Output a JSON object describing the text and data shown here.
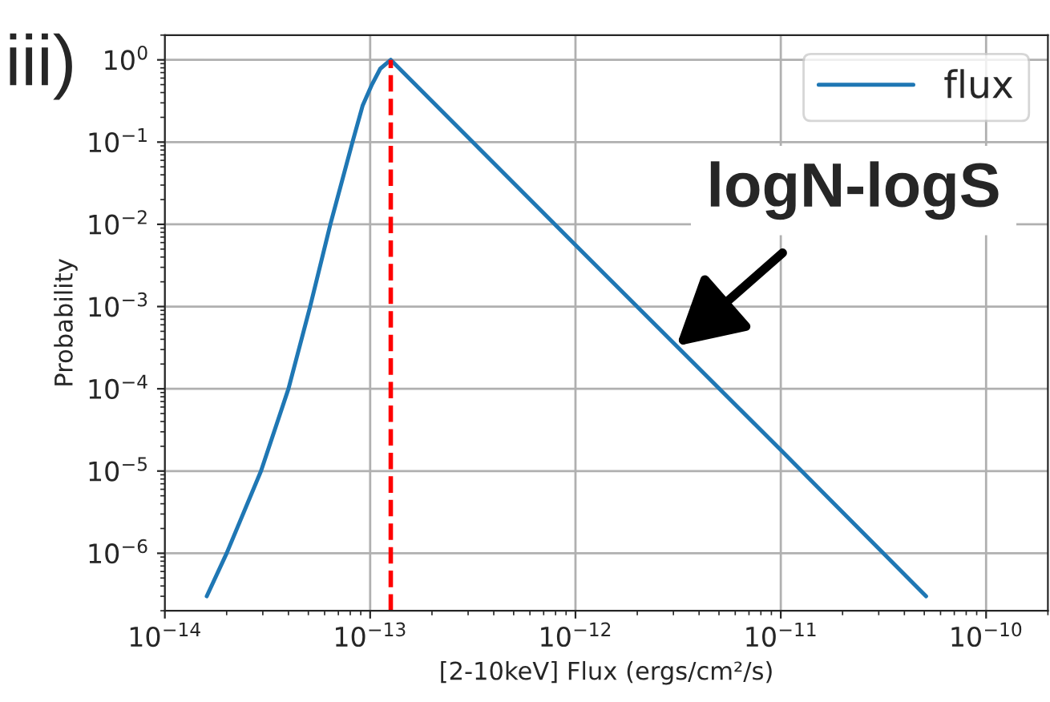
{
  "chart_data": {
    "type": "line",
    "xlabel": "[2-10keV] Flux (ergs/cm²/s)",
    "ylabel": "Probability",
    "series": [
      {
        "name": "flux",
        "color": "#1f77b4",
        "x": [
          1.6e-14,
          2e-14,
          2.94e-14,
          4e-14,
          5.1e-14,
          6.4e-14,
          8.2e-14,
          9.2e-14,
          1.02e-13,
          1.12e-13,
          1.26e-13,
          1e-12,
          1e-11,
          5.1e-11
        ],
        "values": [
          3e-07,
          1e-06,
          1e-05,
          0.0001,
          0.001,
          0.01,
          0.1,
          0.28,
          0.5,
          0.78,
          1,
          0.0056,
          1.8e-05,
          3e-07
        ]
      }
    ],
    "log": "xy",
    "grid": true,
    "legend": "top right",
    "line_style": "solid",
    "marker": "none",
    "xlim": [
      1e-14,
      2e-10
    ],
    "xticks": [
      {
        "value": 1e-14,
        "label": "10$^{−14}$"
      },
      {
        "value": 1e-13,
        "label": "10$^{−13}$"
      },
      {
        "value": 1e-12,
        "label": "10$^{−12}$"
      },
      {
        "value": 1e-11,
        "label": "10$^{−11}$"
      },
      {
        "value": 1e-10,
        "label": "10$^{−10}$"
      }
    ],
    "ylim": [
      2e-07,
      2
    ],
    "yticks": [
      {
        "value": 1e-06,
        "label": "10$^{−6}$"
      },
      {
        "value": 1e-05,
        "label": "10$^{−5}$"
      },
      {
        "value": 0.0001,
        "label": "10$^{−4}$"
      },
      {
        "value": 0.001,
        "label": "10$^{−3}$"
      },
      {
        "value": 0.01,
        "label": "10$^{−2}$"
      },
      {
        "value": 0.1,
        "label": "10$^{−1}$"
      },
      {
        "value": 1,
        "label": "10$^{0}$"
      }
    ],
    "ref_lines": [
      {
        "axis": "x",
        "value": 1.26e-13,
        "color": "#ff0000",
        "line_style": "dashed"
      }
    ],
    "annotations": [
      "iii)",
      {
        "text": "logN-logS",
        "x": 3.1e-12,
        "y": 0.00033
      }
    ]
  }
}
